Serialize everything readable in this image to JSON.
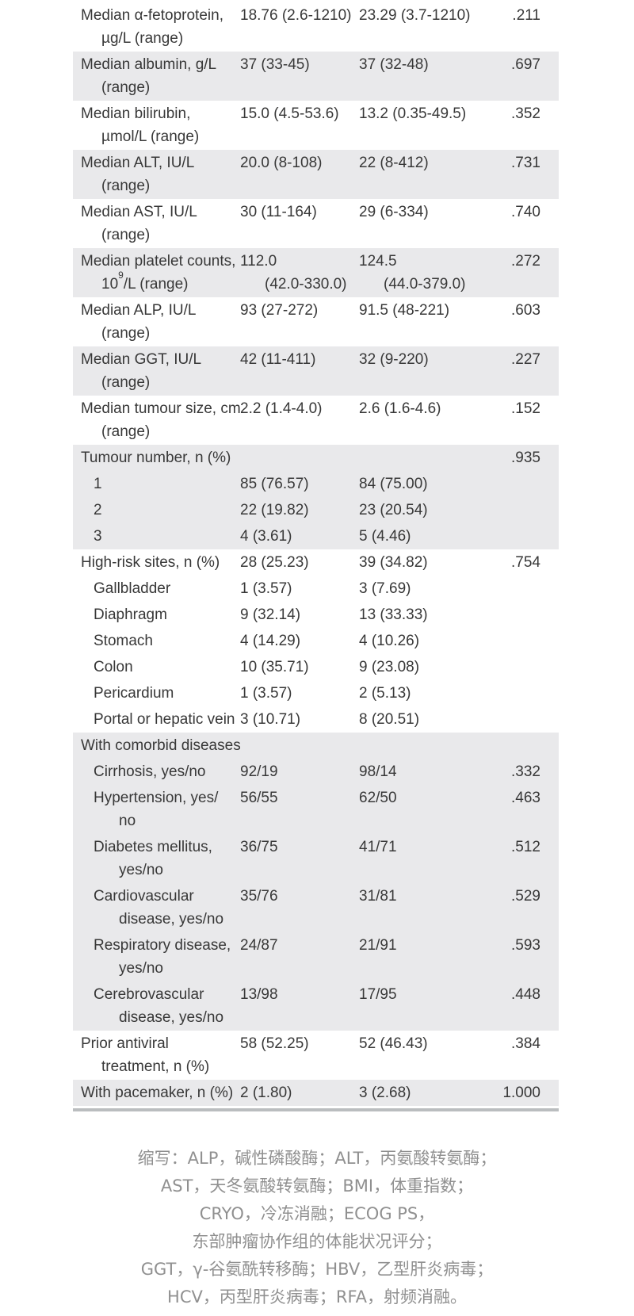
{
  "colors": {
    "row_band": "#e9e9eb",
    "bottom_border": "#babdbf",
    "table_text": "#383838",
    "footnote_text": "#909090"
  },
  "table": {
    "rows": [
      {
        "bg": "white",
        "type": "item",
        "label": [
          "Median α-fetoprotein,",
          "µg/L (range)"
        ],
        "group1": [
          "18.76 (2.6-1210)"
        ],
        "group2": [
          "23.29 (3.7-1210)"
        ],
        "p": ".211"
      },
      {
        "bg": "gray",
        "type": "item",
        "label": [
          "Median albumin, g/L",
          "(range)"
        ],
        "group1": [
          "37 (33-45)"
        ],
        "group2": [
          "37 (32-48)"
        ],
        "p": ".697"
      },
      {
        "bg": "white",
        "type": "item",
        "label": [
          "Median bilirubin,",
          "µmol/L (range)"
        ],
        "group1": [
          "15.0 (4.5-53.6)"
        ],
        "group2": [
          "13.2 (0.35-49.5)"
        ],
        "p": ".352"
      },
      {
        "bg": "gray",
        "type": "item",
        "label": [
          "Median ALT, IU/L",
          "(range)"
        ],
        "group1": [
          "20.0 (8-108)"
        ],
        "group2": [
          "22 (8-412)"
        ],
        "p": ".731"
      },
      {
        "bg": "white",
        "type": "item",
        "label": [
          "Median AST, IU/L",
          "(range)"
        ],
        "group1": [
          "30 (11-164)"
        ],
        "group2": [
          "29 (6-334)"
        ],
        "p": ".740"
      },
      {
        "bg": "gray",
        "type": "item",
        "label": [
          "Median platelet counts,",
          "10^9^/L (range)"
        ],
        "group1": [
          "112.0",
          "(42.0-330.0)"
        ],
        "group2": [
          "124.5",
          "(44.0-379.0)"
        ],
        "p": ".272"
      },
      {
        "bg": "white",
        "type": "item",
        "label": [
          "Median ALP, IU/L",
          "(range)"
        ],
        "group1": [
          "93 (27-272)"
        ],
        "group2": [
          "91.5 (48-221)"
        ],
        "p": ".603"
      },
      {
        "bg": "gray",
        "type": "item",
        "label": [
          "Median GGT, IU/L",
          "(range)"
        ],
        "group1": [
          "42 (11-411)"
        ],
        "group2": [
          "32 (9-220)"
        ],
        "p": ".227"
      },
      {
        "bg": "white",
        "type": "item",
        "label": [
          "Median tumour size, cm",
          "(range)"
        ],
        "group1": [
          "2.2 (1.4-4.0)"
        ],
        "group2": [
          "2.6 (1.6-4.6)"
        ],
        "p": ".152"
      },
      {
        "bg": "gray",
        "type": "section",
        "label": [
          "Tumour number, n (%)"
        ],
        "group1": [],
        "group2": [],
        "p": ".935"
      },
      {
        "bg": "gray",
        "type": "subitem",
        "label": [
          "1"
        ],
        "group1": [
          "85 (76.57)"
        ],
        "group2": [
          "84 (75.00)"
        ],
        "p": ""
      },
      {
        "bg": "gray",
        "type": "subitem",
        "label": [
          "2"
        ],
        "group1": [
          "22 (19.82)"
        ],
        "group2": [
          "23 (20.54)"
        ],
        "p": ""
      },
      {
        "bg": "gray",
        "type": "subitem",
        "label": [
          "3"
        ],
        "group1": [
          "4 (3.61)"
        ],
        "group2": [
          "5 (4.46)"
        ],
        "p": ""
      },
      {
        "bg": "white",
        "type": "section",
        "label": [
          "High-risk sites, n (%)"
        ],
        "group1": [
          "28 (25.23)"
        ],
        "group2": [
          "39 (34.82)"
        ],
        "p": ".754"
      },
      {
        "bg": "white",
        "type": "subitem",
        "label": [
          "Gallbladder"
        ],
        "group1": [
          "1 (3.57)"
        ],
        "group2": [
          "3 (7.69)"
        ],
        "p": ""
      },
      {
        "bg": "white",
        "type": "subitem",
        "label": [
          "Diaphragm"
        ],
        "group1": [
          "9 (32.14)"
        ],
        "group2": [
          "13 (33.33)"
        ],
        "p": ""
      },
      {
        "bg": "white",
        "type": "subitem",
        "label": [
          "Stomach"
        ],
        "group1": [
          "4 (14.29)"
        ],
        "group2": [
          "4 (10.26)"
        ],
        "p": ""
      },
      {
        "bg": "white",
        "type": "subitem",
        "label": [
          "Colon"
        ],
        "group1": [
          "10 (35.71)"
        ],
        "group2": [
          "9 (23.08)"
        ],
        "p": ""
      },
      {
        "bg": "white",
        "type": "subitem",
        "label": [
          "Pericardium"
        ],
        "group1": [
          "1 (3.57)"
        ],
        "group2": [
          "2 (5.13)"
        ],
        "p": ""
      },
      {
        "bg": "white",
        "type": "subitem",
        "label": [
          "Portal or hepatic vein"
        ],
        "group1": [
          "3 (10.71)"
        ],
        "group2": [
          "8 (20.51)"
        ],
        "p": ""
      },
      {
        "bg": "gray",
        "type": "section",
        "label": [
          "With comorbid diseases"
        ],
        "group1": [],
        "group2": [],
        "p": ""
      },
      {
        "bg": "gray",
        "type": "subitem",
        "label": [
          "Cirrhosis, yes/no"
        ],
        "group1": [
          "92/19"
        ],
        "group2": [
          "98/14"
        ],
        "p": ".332"
      },
      {
        "bg": "gray",
        "type": "subitem",
        "label": [
          "Hypertension, yes/",
          "no"
        ],
        "group1": [
          "56/55"
        ],
        "group2": [
          "62/50"
        ],
        "p": ".463"
      },
      {
        "bg": "gray",
        "type": "subitem",
        "label": [
          "Diabetes mellitus,",
          "yes/no"
        ],
        "group1": [
          "36/75"
        ],
        "group2": [
          "41/71"
        ],
        "p": ".512"
      },
      {
        "bg": "gray",
        "type": "subitem",
        "label": [
          "Cardiovascular",
          "disease, yes/no"
        ],
        "group1": [
          "35/76"
        ],
        "group2": [
          "31/81"
        ],
        "p": ".529"
      },
      {
        "bg": "gray",
        "type": "subitem",
        "label": [
          "Respiratory disease,",
          "yes/no"
        ],
        "group1": [
          "24/87"
        ],
        "group2": [
          "21/91"
        ],
        "p": ".593"
      },
      {
        "bg": "gray",
        "type": "subitem",
        "label": [
          "Cerebrovascular",
          "disease, yes/no"
        ],
        "group1": [
          "13/98"
        ],
        "group2": [
          "17/95"
        ],
        "p": ".448"
      },
      {
        "bg": "white",
        "type": "item",
        "label": [
          "Prior antiviral",
          "treatment, n (%)"
        ],
        "group1": [
          "58 (52.25)"
        ],
        "group2": [
          "52 (46.43)"
        ],
        "p": ".384"
      },
      {
        "bg": "gray",
        "type": "item",
        "label": [
          "With pacemaker, n (%)"
        ],
        "group1": [
          "2 (1.80)"
        ],
        "group2": [
          "3 (2.68)"
        ],
        "p": "1.000"
      }
    ]
  },
  "footnote": {
    "lines": [
      "缩写：ALP，碱性磷酸酶；ALT，丙氨酸转氨酶；",
      "AST，天冬氨酸转氨酶；BMI，体重指数；",
      "CRYO，冷冻消融；ECOG PS，",
      "东部肿瘤协作组的体能状况评分；",
      "GGT，γ-谷氨酰转移酶；HBV，乙型肝炎病毒；",
      "HCV，丙型肝炎病毒；RFA，射频消融。"
    ]
  }
}
